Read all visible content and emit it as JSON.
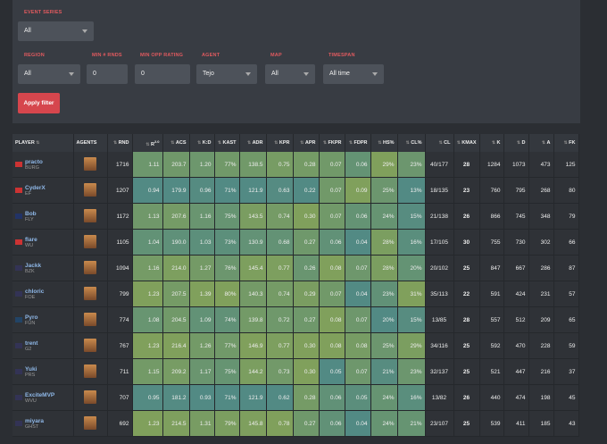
{
  "filters": {
    "event_series": {
      "label": "EVENT SERIES",
      "value": "All"
    },
    "region": {
      "label": "REGION",
      "value": "All"
    },
    "min_rounds": {
      "label": "MIN # RNDS",
      "value": "0"
    },
    "min_opp_rating": {
      "label": "MIN OPP RATING",
      "value": "0"
    },
    "agent": {
      "label": "AGENT",
      "value": "Tejo"
    },
    "map": {
      "label": "MAP",
      "value": "All"
    },
    "timespan": {
      "label": "TIMESPAN",
      "value": "All time"
    },
    "apply": "Apply filter"
  },
  "table": {
    "headers": [
      "PLAYER",
      "AGENTS",
      "RND",
      "R",
      "ACS",
      "K:D",
      "KAST",
      "ADR",
      "KPR",
      "APR",
      "FKPR",
      "FDPR",
      "HS%",
      "CL%",
      "CL",
      "KMAX",
      "K",
      "D",
      "A",
      "FK"
    ],
    "rating_version": "2.0",
    "rows": [
      {
        "player": "practo",
        "team": "BURG",
        "values": [
          "1716",
          "1.11",
          "203.7",
          "1.20",
          "77%",
          "138.5",
          "0.75",
          "0.28",
          "0.07",
          "0.06",
          "29%",
          "23%",
          "40/177",
          "28",
          "1284",
          "1073",
          "473",
          "125"
        ]
      },
      {
        "player": "CyderX",
        "team": "EF",
        "values": [
          "1207",
          "0.94",
          "179.9",
          "0.96",
          "71%",
          "121.9",
          "0.63",
          "0.22",
          "0.07",
          "0.09",
          "25%",
          "13%",
          "18/135",
          "23",
          "760",
          "795",
          "268",
          "80"
        ]
      },
      {
        "player": "Bob",
        "team": "FLY",
        "values": [
          "1172",
          "1.13",
          "207.6",
          "1.16",
          "75%",
          "143.5",
          "0.74",
          "0.30",
          "0.07",
          "0.06",
          "24%",
          "15%",
          "21/138",
          "26",
          "866",
          "745",
          "348",
          "79"
        ]
      },
      {
        "player": "flare",
        "team": "WU",
        "values": [
          "1105",
          "1.04",
          "190.0",
          "1.03",
          "73%",
          "130.9",
          "0.68",
          "0.27",
          "0.06",
          "0.04",
          "28%",
          "16%",
          "17/105",
          "30",
          "755",
          "730",
          "302",
          "66"
        ]
      },
      {
        "player": "Jackk",
        "team": "BZK",
        "values": [
          "1094",
          "1.16",
          "214.0",
          "1.27",
          "76%",
          "145.4",
          "0.77",
          "0.26",
          "0.08",
          "0.07",
          "28%",
          "20%",
          "20/102",
          "25",
          "847",
          "667",
          "286",
          "87"
        ]
      },
      {
        "player": "chloric",
        "team": "FOE",
        "values": [
          "799",
          "1.23",
          "207.5",
          "1.39",
          "80%",
          "140.3",
          "0.74",
          "0.29",
          "0.07",
          "0.04",
          "23%",
          "31%",
          "35/113",
          "22",
          "591",
          "424",
          "231",
          "57"
        ]
      },
      {
        "player": "Pyro",
        "team": "FUN",
        "values": [
          "774",
          "1.08",
          "204.5",
          "1.09",
          "74%",
          "139.8",
          "0.72",
          "0.27",
          "0.08",
          "0.07",
          "20%",
          "15%",
          "13/85",
          "28",
          "557",
          "512",
          "209",
          "65"
        ]
      },
      {
        "player": "trent",
        "team": "G2",
        "values": [
          "767",
          "1.23",
          "216.4",
          "1.26",
          "77%",
          "146.9",
          "0.77",
          "0.30",
          "0.08",
          "0.08",
          "25%",
          "29%",
          "34/116",
          "25",
          "592",
          "470",
          "228",
          "59"
        ]
      },
      {
        "player": "Yuki",
        "team": "PRS",
        "values": [
          "711",
          "1.15",
          "209.2",
          "1.17",
          "75%",
          "144.2",
          "0.73",
          "0.30",
          "0.05",
          "0.07",
          "21%",
          "23%",
          "32/137",
          "25",
          "521",
          "447",
          "216",
          "37"
        ]
      },
      {
        "player": "ExciteMVP",
        "team": "WVU",
        "values": [
          "707",
          "0.95",
          "181.2",
          "0.93",
          "71%",
          "121.9",
          "0.62",
          "0.28",
          "0.06",
          "0.05",
          "24%",
          "16%",
          "13/82",
          "26",
          "440",
          "474",
          "198",
          "45"
        ]
      },
      {
        "player": "miyara",
        "team": "GHST",
        "values": [
          "692",
          "1.23",
          "214.5",
          "1.31",
          "79%",
          "145.8",
          "0.78",
          "0.27",
          "0.06",
          "0.04",
          "24%",
          "21%",
          "23/107",
          "25",
          "539",
          "411",
          "185",
          "43"
        ]
      }
    ]
  }
}
